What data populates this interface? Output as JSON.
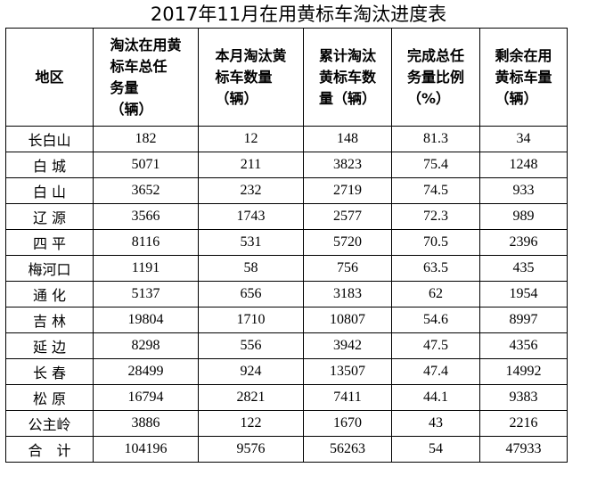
{
  "title": "2017年11月在用黄标车淘汰进度表",
  "table": {
    "headers": [
      "地区",
      "淘汰在用黄\n标车总任\n务量\n（辆）",
      "本月淘汰黄\n标车数量\n（辆）",
      "累计淘汰\n黄标车数\n量（辆）",
      "完成总任\n务量比例\n（%）",
      "剩余在用\n黄标车量\n（辆）"
    ],
    "rows": [
      [
        "长白山",
        "182",
        "12",
        "148",
        "81.3",
        "34"
      ],
      [
        "白 城",
        "5071",
        "211",
        "3823",
        "75.4",
        "1248"
      ],
      [
        "白 山",
        "3652",
        "232",
        "2719",
        "74.5",
        "933"
      ],
      [
        "辽 源",
        "3566",
        "1743",
        "2577",
        "72.3",
        "989"
      ],
      [
        "四 平",
        "8116",
        "531",
        "5720",
        "70.5",
        "2396"
      ],
      [
        "梅河口",
        "1191",
        "58",
        "756",
        "63.5",
        "435"
      ],
      [
        "通 化",
        "5137",
        "656",
        "3183",
        "62",
        "1954"
      ],
      [
        "吉 林",
        "19804",
        "1710",
        "10807",
        "54.6",
        "8997"
      ],
      [
        "延 边",
        "8298",
        "556",
        "3942",
        "47.5",
        "4356"
      ],
      [
        "长 春",
        "28499",
        "924",
        "13507",
        "47.4",
        "14992"
      ],
      [
        "松 原",
        "16794",
        "2821",
        "7411",
        "44.1",
        "9383"
      ],
      [
        "公主岭",
        "3886",
        "122",
        "1670",
        "43",
        "2216"
      ],
      [
        "合　计",
        "104196",
        "9576",
        "56263",
        "54",
        "47933"
      ]
    ]
  }
}
